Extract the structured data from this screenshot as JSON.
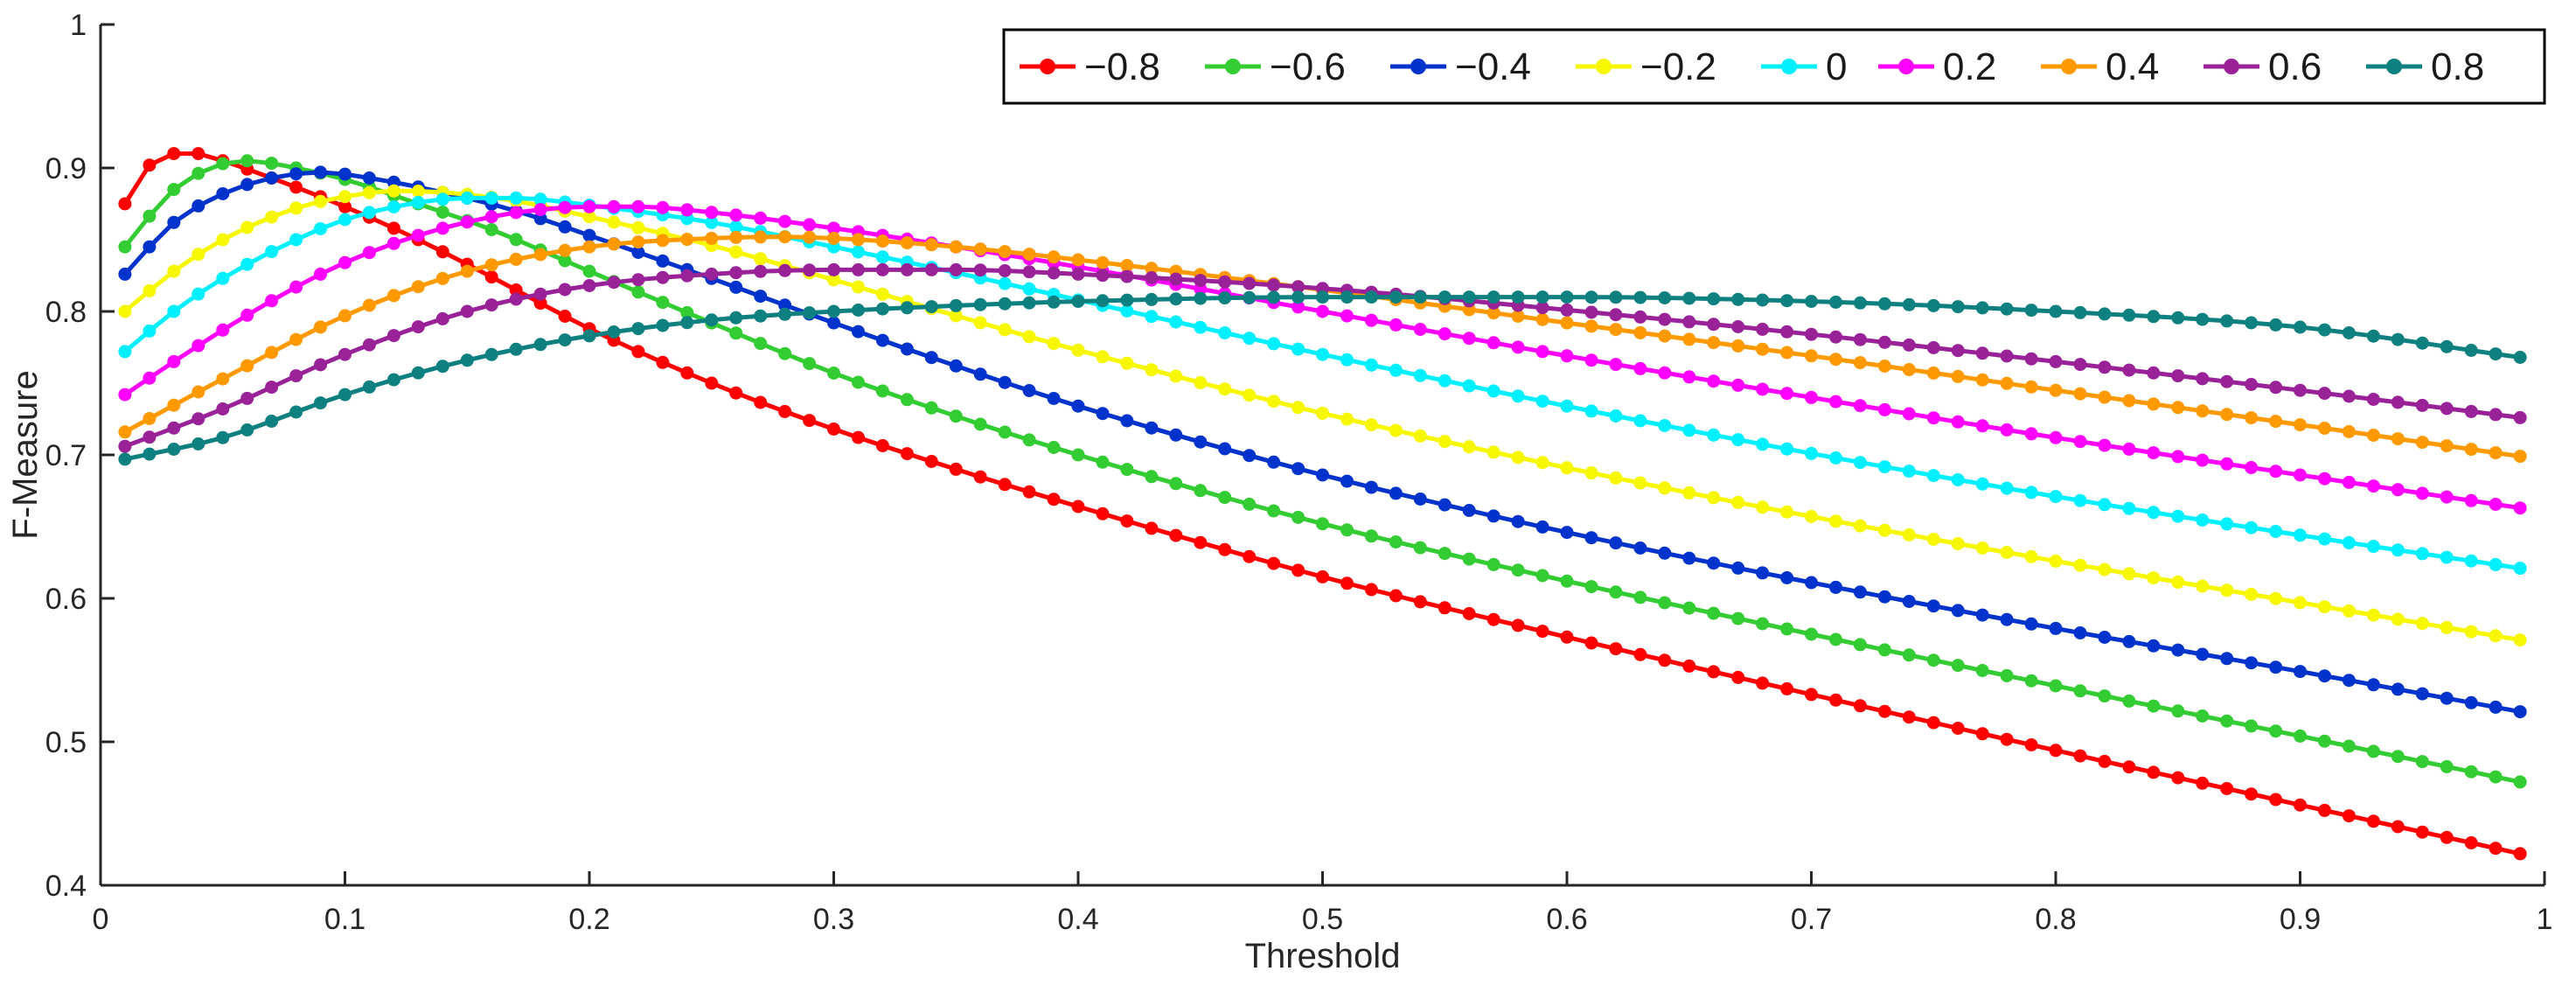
{
  "figure": {
    "background": "#ffffff",
    "axis_color": "#262626",
    "text_color": "#262626"
  },
  "chart_data": {
    "type": "line",
    "title": "",
    "xlabel": "Threshold",
    "ylabel": "F-Measure",
    "xlim": [
      0,
      1
    ],
    "ylim": [
      0.4,
      1
    ],
    "grid": false,
    "legend": {
      "position": "top-right",
      "border": true,
      "orientation": "horizontal"
    },
    "marker": {
      "shape": "circle",
      "x_start": 0.01,
      "x_end": 0.99,
      "step": 0.01
    },
    "xticks": {
      "values": [
        0,
        0.1,
        0.2,
        0.3,
        0.4,
        0.5,
        0.6,
        0.7,
        0.8,
        0.9,
        1
      ],
      "labels": [
        "0",
        "0.1",
        "0.2",
        "0.3",
        "0.4",
        "0.5",
        "0.6",
        "0.7",
        "0.8",
        "0.9",
        "1"
      ]
    },
    "yticks": {
      "values": [
        0.4,
        0.5,
        0.6,
        0.7,
        0.8,
        0.9,
        1
      ],
      "labels": [
        "0.4",
        "0.5",
        "0.6",
        "0.7",
        "0.8",
        "0.9",
        "1"
      ]
    },
    "series": [
      {
        "name": "−0.8",
        "color": "#ff0000",
        "anchors": [
          [
            0.01,
            0.875
          ],
          [
            0.02,
            0.902
          ],
          [
            0.03,
            0.91
          ],
          [
            0.04,
            0.91
          ],
          [
            0.05,
            0.905
          ],
          [
            0.07,
            0.893
          ],
          [
            0.1,
            0.873
          ],
          [
            0.13,
            0.85
          ],
          [
            0.16,
            0.824
          ],
          [
            0.2,
            0.788
          ],
          [
            0.25,
            0.75
          ],
          [
            0.3,
            0.718
          ],
          [
            0.35,
            0.69
          ],
          [
            0.4,
            0.664
          ],
          [
            0.5,
            0.615
          ],
          [
            0.6,
            0.573
          ],
          [
            0.7,
            0.533
          ],
          [
            0.8,
            0.494
          ],
          [
            0.9,
            0.456
          ],
          [
            0.99,
            0.422
          ]
        ]
      },
      {
        "name": "−0.6",
        "color": "#33cc33",
        "anchors": [
          [
            0.01,
            0.845
          ],
          [
            0.03,
            0.885
          ],
          [
            0.05,
            0.903
          ],
          [
            0.06,
            0.905
          ],
          [
            0.08,
            0.9
          ],
          [
            0.1,
            0.892
          ],
          [
            0.13,
            0.875
          ],
          [
            0.16,
            0.857
          ],
          [
            0.2,
            0.828
          ],
          [
            0.25,
            0.792
          ],
          [
            0.3,
            0.757
          ],
          [
            0.35,
            0.727
          ],
          [
            0.4,
            0.7
          ],
          [
            0.5,
            0.652
          ],
          [
            0.6,
            0.612
          ],
          [
            0.7,
            0.575
          ],
          [
            0.8,
            0.539
          ],
          [
            0.9,
            0.504
          ],
          [
            0.99,
            0.472
          ]
        ]
      },
      {
        "name": "−0.4",
        "color": "#0033cc",
        "anchors": [
          [
            0.01,
            0.826
          ],
          [
            0.03,
            0.862
          ],
          [
            0.05,
            0.882
          ],
          [
            0.07,
            0.893
          ],
          [
            0.09,
            0.897
          ],
          [
            0.11,
            0.893
          ],
          [
            0.14,
            0.883
          ],
          [
            0.17,
            0.87
          ],
          [
            0.2,
            0.853
          ],
          [
            0.25,
            0.823
          ],
          [
            0.3,
            0.792
          ],
          [
            0.35,
            0.762
          ],
          [
            0.4,
            0.734
          ],
          [
            0.5,
            0.686
          ],
          [
            0.6,
            0.646
          ],
          [
            0.7,
            0.611
          ],
          [
            0.8,
            0.579
          ],
          [
            0.9,
            0.549
          ],
          [
            0.99,
            0.521
          ]
        ]
      },
      {
        "name": "−0.2",
        "color": "#f7f700",
        "anchors": [
          [
            0.01,
            0.8
          ],
          [
            0.03,
            0.828
          ],
          [
            0.05,
            0.85
          ],
          [
            0.08,
            0.872
          ],
          [
            0.1,
            0.88
          ],
          [
            0.12,
            0.884
          ],
          [
            0.14,
            0.883
          ],
          [
            0.17,
            0.877
          ],
          [
            0.2,
            0.866
          ],
          [
            0.25,
            0.846
          ],
          [
            0.3,
            0.822
          ],
          [
            0.35,
            0.797
          ],
          [
            0.4,
            0.773
          ],
          [
            0.5,
            0.729
          ],
          [
            0.6,
            0.691
          ],
          [
            0.7,
            0.657
          ],
          [
            0.8,
            0.626
          ],
          [
            0.9,
            0.597
          ],
          [
            0.99,
            0.571
          ]
        ]
      },
      {
        "name": "0",
        "color": "#00f0ff",
        "anchors": [
          [
            0.01,
            0.772
          ],
          [
            0.03,
            0.8
          ],
          [
            0.05,
            0.823
          ],
          [
            0.08,
            0.85
          ],
          [
            0.1,
            0.864
          ],
          [
            0.13,
            0.876
          ],
          [
            0.15,
            0.879
          ],
          [
            0.17,
            0.879
          ],
          [
            0.2,
            0.874
          ],
          [
            0.25,
            0.862
          ],
          [
            0.3,
            0.845
          ],
          [
            0.35,
            0.827
          ],
          [
            0.4,
            0.808
          ],
          [
            0.5,
            0.77
          ],
          [
            0.6,
            0.734
          ],
          [
            0.7,
            0.701
          ],
          [
            0.8,
            0.671
          ],
          [
            0.9,
            0.644
          ],
          [
            0.99,
            0.621
          ]
        ]
      },
      {
        "name": "0.2",
        "color": "#ff00ff",
        "anchors": [
          [
            0.01,
            0.742
          ],
          [
            0.03,
            0.765
          ],
          [
            0.05,
            0.787
          ],
          [
            0.08,
            0.817
          ],
          [
            0.1,
            0.834
          ],
          [
            0.13,
            0.853
          ],
          [
            0.16,
            0.866
          ],
          [
            0.18,
            0.871
          ],
          [
            0.2,
            0.873
          ],
          [
            0.22,
            0.873
          ],
          [
            0.25,
            0.869
          ],
          [
            0.3,
            0.858
          ],
          [
            0.35,
            0.845
          ],
          [
            0.4,
            0.831
          ],
          [
            0.5,
            0.8
          ],
          [
            0.6,
            0.769
          ],
          [
            0.7,
            0.74
          ],
          [
            0.8,
            0.712
          ],
          [
            0.9,
            0.686
          ],
          [
            0.99,
            0.663
          ]
        ]
      },
      {
        "name": "0.4",
        "color": "#ff9900",
        "anchors": [
          [
            0.01,
            0.716
          ],
          [
            0.05,
            0.753
          ],
          [
            0.1,
            0.797
          ],
          [
            0.15,
            0.828
          ],
          [
            0.2,
            0.845
          ],
          [
            0.25,
            0.851
          ],
          [
            0.28,
            0.852
          ],
          [
            0.3,
            0.851
          ],
          [
            0.35,
            0.845
          ],
          [
            0.4,
            0.836
          ],
          [
            0.5,
            0.815
          ],
          [
            0.6,
            0.792
          ],
          [
            0.7,
            0.769
          ],
          [
            0.8,
            0.745
          ],
          [
            0.9,
            0.721
          ],
          [
            0.99,
            0.699
          ]
        ]
      },
      {
        "name": "0.6",
        "color": "#992299",
        "anchors": [
          [
            0.01,
            0.706
          ],
          [
            0.05,
            0.732
          ],
          [
            0.1,
            0.77
          ],
          [
            0.15,
            0.8
          ],
          [
            0.2,
            0.818
          ],
          [
            0.25,
            0.826
          ],
          [
            0.3,
            0.829
          ],
          [
            0.35,
            0.829
          ],
          [
            0.4,
            0.826
          ],
          [
            0.5,
            0.816
          ],
          [
            0.6,
            0.801
          ],
          [
            0.7,
            0.784
          ],
          [
            0.8,
            0.765
          ],
          [
            0.9,
            0.745
          ],
          [
            0.99,
            0.726
          ]
        ]
      },
      {
        "name": "0.8",
        "color": "#0e8080",
        "anchors": [
          [
            0.01,
            0.697
          ],
          [
            0.05,
            0.712
          ],
          [
            0.1,
            0.742
          ],
          [
            0.15,
            0.766
          ],
          [
            0.2,
            0.783
          ],
          [
            0.25,
            0.794
          ],
          [
            0.3,
            0.8
          ],
          [
            0.35,
            0.804
          ],
          [
            0.4,
            0.807
          ],
          [
            0.5,
            0.81
          ],
          [
            0.6,
            0.81
          ],
          [
            0.7,
            0.807
          ],
          [
            0.8,
            0.8
          ],
          [
            0.9,
            0.789
          ],
          [
            0.99,
            0.768
          ]
        ]
      }
    ]
  }
}
